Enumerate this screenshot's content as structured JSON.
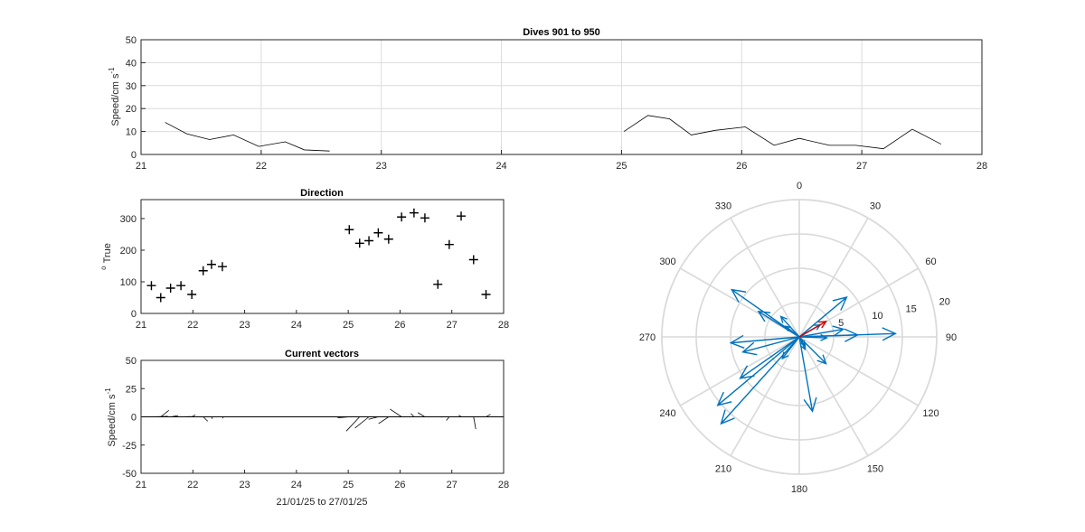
{
  "chart_data": [
    {
      "type": "line",
      "title": "Dives 901 to 950",
      "xlabel": "",
      "ylabel": "Speed/cm s",
      "ylabel_sup": "-1",
      "xlim": [
        21,
        28
      ],
      "ylim": [
        0,
        50
      ],
      "xticks": [
        21,
        22,
        23,
        24,
        25,
        26,
        27,
        28
      ],
      "yticks": [
        0,
        10,
        20,
        30,
        40,
        50
      ],
      "grid": true,
      "series": [
        {
          "color": "#000000",
          "segments": [
            {
              "x": [
                21.2,
                21.38,
                21.57,
                21.77,
                21.98,
                22.2,
                22.36,
                22.57
              ],
              "y": [
                14,
                9,
                6.5,
                8.5,
                3.5,
                5.5,
                2,
                1.5
              ]
            },
            {
              "x": [
                25.02,
                25.22,
                25.4,
                25.58,
                25.78,
                26.03,
                26.27,
                26.48,
                26.73,
                26.95,
                27.18,
                27.42,
                27.66
              ],
              "y": [
                10,
                17,
                15.5,
                8.5,
                10.5,
                12,
                4,
                7,
                4,
                4,
                2.5,
                11,
                4.5
              ]
            }
          ]
        }
      ]
    },
    {
      "type": "scatter",
      "title": "Direction",
      "xlabel": "",
      "ylabel": "True",
      "ylabel_sup": "o",
      "xlim": [
        21,
        28
      ],
      "ylim": [
        0,
        360
      ],
      "xticks": [
        21,
        22,
        23,
        24,
        25,
        26,
        27,
        28
      ],
      "yticks": [
        0,
        100,
        200,
        300
      ],
      "grid": false,
      "marker": "+",
      "x": [
        21.2,
        21.38,
        21.57,
        21.77,
        21.98,
        22.2,
        22.36,
        22.57,
        25.02,
        25.22,
        25.4,
        25.58,
        25.78,
        26.03,
        26.27,
        26.48,
        26.73,
        26.95,
        27.18,
        27.42,
        27.66
      ],
      "y": [
        88,
        50,
        80,
        88,
        60,
        135,
        155,
        148,
        265,
        222,
        230,
        255,
        235,
        305,
        318,
        302,
        92,
        218,
        308,
        170,
        60
      ]
    },
    {
      "type": "quiver",
      "title": "Current vectors",
      "xlabel": "21/01/25 to 27/01/25",
      "ylabel": "Speed/cm s",
      "ylabel_sup": "-1",
      "xlim": [
        21,
        28
      ],
      "ylim": [
        -50,
        50
      ],
      "xticks": [
        21,
        22,
        23,
        24,
        25,
        26,
        27,
        28
      ],
      "yticks": [
        -50,
        -25,
        0,
        25,
        50
      ],
      "grid": false,
      "time_range": [
        21,
        28
      ]
    },
    {
      "type": "polar",
      "title": "",
      "theta_ticks": [
        "0",
        "30",
        "60",
        "90",
        "120",
        "150",
        "180",
        "210",
        "240",
        "270",
        "300",
        "330"
      ],
      "r_ticks": [
        "5",
        "10",
        "15",
        "20"
      ],
      "rlim": [
        0,
        20
      ],
      "color": "#0072bd",
      "latest_color": "#d00000"
    }
  ],
  "vectors": {
    "speed": [
      14,
      9,
      6.5,
      8.5,
      3.5,
      5.5,
      2,
      1.5,
      10,
      17,
      15.5,
      8.5,
      10.5,
      12,
      4,
      7,
      4,
      4,
      2.5,
      11,
      4.5
    ],
    "direction": [
      88,
      50,
      80,
      88,
      60,
      135,
      155,
      148,
      265,
      222,
      230,
      255,
      235,
      305,
      318,
      302,
      92,
      218,
      308,
      170,
      60
    ]
  }
}
